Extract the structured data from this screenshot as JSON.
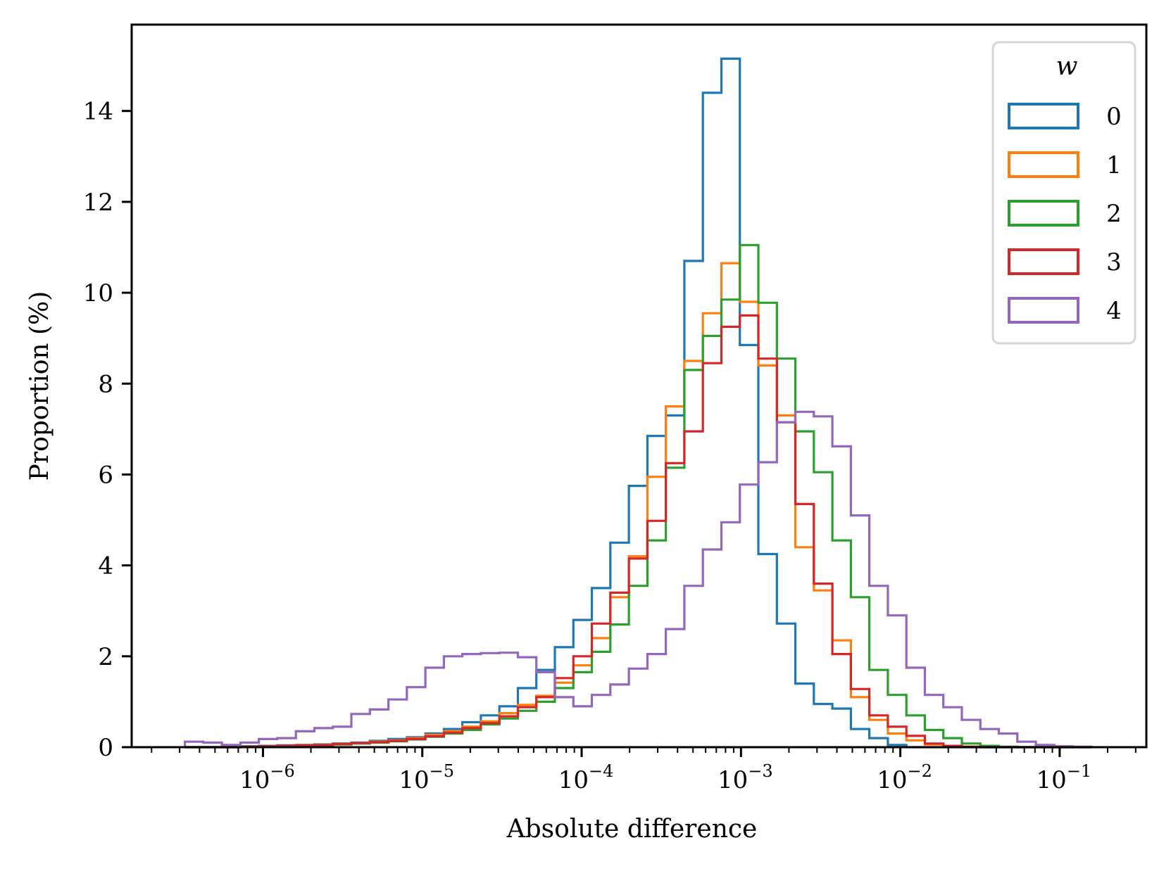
{
  "chart_data": {
    "type": "histogram-step",
    "title": "",
    "xlabel": "Absolute difference",
    "ylabel": "Proportion (%)",
    "xscale": "log",
    "xlim": [
      1.5e-07,
      0.35
    ],
    "ylim": [
      0,
      15.9
    ],
    "yticks": [
      0,
      2,
      4,
      6,
      8,
      10,
      12,
      14
    ],
    "xticks": [
      {
        "value": 1e-06,
        "base": "10",
        "exp": "−6"
      },
      {
        "value": 1e-05,
        "base": "10",
        "exp": "−5"
      },
      {
        "value": 0.0001,
        "base": "10",
        "exp": "−4"
      },
      {
        "value": 0.001,
        "base": "10",
        "exp": "−3"
      },
      {
        "value": 0.01,
        "base": "10",
        "exp": "−2"
      },
      {
        "value": 0.1,
        "base": "10",
        "exp": "−1"
      }
    ],
    "grid": false,
    "legend": {
      "title": "w",
      "placement": "top-right"
    },
    "bins_log10_start": -6.49,
    "bins_log10_step": 0.1161,
    "series": [
      {
        "name": "0",
        "color": "#1f77b4",
        "values": [
          0,
          0,
          0,
          0.02,
          0.03,
          0.04,
          0.05,
          0.06,
          0.08,
          0.1,
          0.14,
          0.18,
          0.22,
          0.3,
          0.4,
          0.55,
          0.7,
          0.9,
          1.3,
          1.7,
          2.2,
          2.8,
          3.5,
          4.5,
          5.75,
          6.85,
          7.3,
          10.7,
          14.4,
          15.15,
          8.85,
          4.25,
          2.72,
          1.4,
          0.95,
          0.85,
          0.4,
          0.2,
          0.05,
          0,
          0,
          0,
          0,
          0,
          0,
          0,
          0,
          0,
          0
        ]
      },
      {
        "name": "1",
        "color": "#ff7f0e",
        "values": [
          0,
          0,
          0,
          0.01,
          0.02,
          0.03,
          0.04,
          0.05,
          0.07,
          0.09,
          0.12,
          0.15,
          0.2,
          0.27,
          0.35,
          0.45,
          0.57,
          0.75,
          0.93,
          1.13,
          1.42,
          1.8,
          2.4,
          3.3,
          4.2,
          5.95,
          7.5,
          8.5,
          9.55,
          10.65,
          9.8,
          8.4,
          7.3,
          4.4,
          3.45,
          2.35,
          1.1,
          0.6,
          0.3,
          0.15,
          0.06,
          0.03,
          0.01,
          0,
          0,
          0,
          0,
          0,
          0
        ]
      },
      {
        "name": "2",
        "color": "#2ca02c",
        "values": [
          0,
          0,
          0,
          0.01,
          0.02,
          0.03,
          0.04,
          0.05,
          0.06,
          0.08,
          0.1,
          0.13,
          0.17,
          0.23,
          0.3,
          0.38,
          0.5,
          0.63,
          0.8,
          1.0,
          1.3,
          1.65,
          2.1,
          2.7,
          3.55,
          4.55,
          6.15,
          8.3,
          9.05,
          9.85,
          11.05,
          9.78,
          8.55,
          6.95,
          6.05,
          4.55,
          3.3,
          1.7,
          1.15,
          0.7,
          0.38,
          0.2,
          0.08,
          0.03,
          0.01,
          0,
          0,
          0,
          0
        ]
      },
      {
        "name": "3",
        "color": "#d62728",
        "values": [
          0,
          0,
          0,
          0.01,
          0.02,
          0.03,
          0.04,
          0.05,
          0.07,
          0.09,
          0.11,
          0.14,
          0.18,
          0.24,
          0.32,
          0.42,
          0.53,
          0.68,
          0.88,
          1.1,
          1.52,
          2.0,
          2.72,
          3.4,
          4.15,
          4.98,
          6.25,
          6.95,
          8.45,
          9.25,
          9.5,
          8.55,
          7.15,
          5.35,
          3.6,
          2.05,
          1.28,
          0.7,
          0.45,
          0.25,
          0.08,
          0.03,
          0.01,
          0,
          0,
          0,
          0,
          0,
          0
        ]
      },
      {
        "name": "4",
        "color": "#9467bd",
        "values": [
          0.12,
          0.1,
          0.05,
          0.1,
          0.18,
          0.2,
          0.35,
          0.42,
          0.45,
          0.73,
          0.83,
          1.05,
          1.32,
          1.75,
          2.0,
          2.05,
          2.07,
          2.08,
          1.98,
          1.65,
          1.1,
          0.9,
          1.15,
          1.38,
          1.73,
          2.05,
          2.6,
          3.55,
          4.35,
          4.95,
          5.78,
          6.27,
          7.15,
          7.38,
          7.28,
          6.62,
          5.1,
          3.55,
          2.9,
          1.75,
          1.15,
          0.88,
          0.6,
          0.4,
          0.3,
          0.12,
          0.05,
          0.02,
          0.01
        ]
      }
    ]
  }
}
